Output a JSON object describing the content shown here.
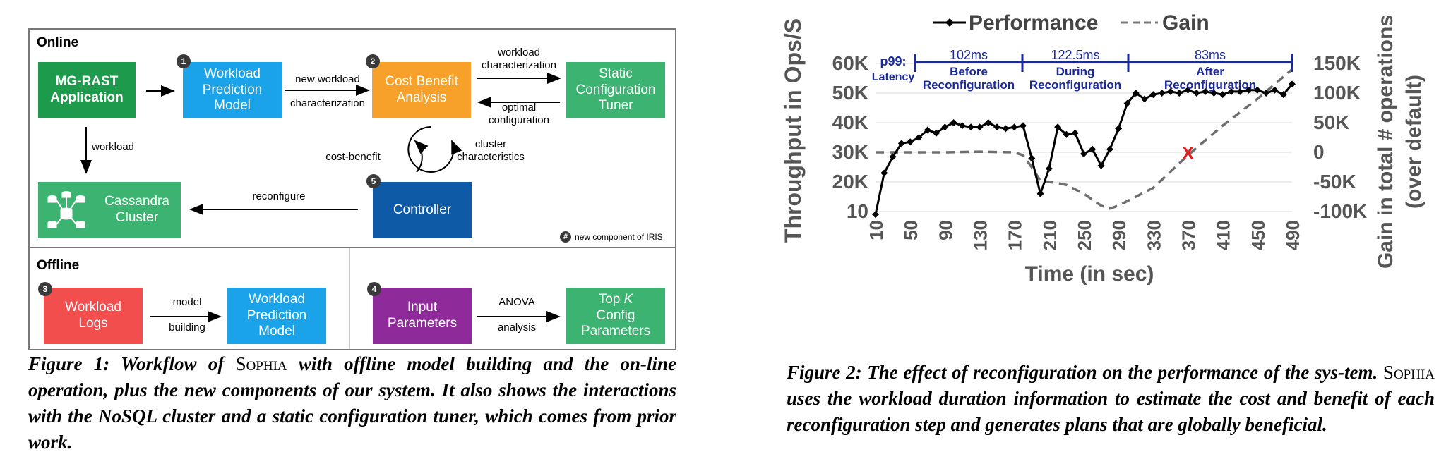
{
  "figure1": {
    "online_label": "Online",
    "offline_label": "Offline",
    "boxes": {
      "mgrast": "MG-RAST\nApplication",
      "workload_prediction": "Workload\nPrediction\nModel",
      "cost_benefit": "Cost Benefit\nAnalysis",
      "static_tuner": "Static\nConfiguration\nTuner",
      "cassandra": "Cassandra\nCluster",
      "controller": "Controller",
      "workload_logs": "Workload\nLogs",
      "workload_prediction_offline": "Workload\nPrediction\nModel",
      "input_params": "Input\nParameters",
      "topk_prefix": "Top ",
      "topk_k": "K",
      "topk_rest": "Config\nParameters"
    },
    "numbers": {
      "n1": "1",
      "n2": "2",
      "n3": "3",
      "n4": "4",
      "n5": "5",
      "legend_num": "#"
    },
    "labels": {
      "new_workload": "new workload",
      "characterization": "characterization",
      "workload_char": "workload\ncharacterization",
      "optimal_config": "optimal\nconfiguration",
      "workload": "workload",
      "cost_benefit": "cost-benefit",
      "cluster_char": "cluster\ncharacteristics",
      "reconfigure": "reconfigure",
      "legend": "new component of IRIS",
      "model": "model",
      "building": "building",
      "anova": "ANOVA",
      "analysis": "analysis"
    },
    "caption_a": "Figure 1: Workflow of ",
    "caption_sophia": "Sophia",
    "caption_b": " with offline model building and the on-line operation, plus the new components of our system. It also shows the interactions with the NoSQL cluster and a static configuration tuner, which comes from prior work.",
    "colors": {
      "green_dark": "#1e9a4c",
      "green": "#3cb371",
      "blue": "#1aa3e8",
      "orange": "#f7a12a",
      "navy": "#0e5aa7",
      "red": "#f24e4e",
      "purple": "#8e2a9a"
    }
  },
  "figure2": {
    "caption_a": "Figure 2: The effect of reconfiguration on the performance of the sys-tem. ",
    "caption_sophia": "Sophia",
    "caption_b": " uses the workload duration information to estimate the cost and benefit of each reconfiguration step and generates plans that are globally beneficial.",
    "annotations": {
      "p99": "p99:",
      "latency": "Latency",
      "before_ms": "102ms",
      "before": "Before",
      "reconf1": "Reconfiguration",
      "during_ms": "122.5ms",
      "during": "During",
      "reconf2": "Reconfiguration",
      "after_ms": "83ms",
      "after": "After",
      "reconf3": "Reconfiguration",
      "x_mark": "X"
    }
  },
  "chart_data": {
    "type": "line",
    "title": "",
    "xlabel": "Time (in sec)",
    "ylabel": "Throughput in Ops/S",
    "y2label": "Gain in total # operations (over default)",
    "x_ticks": [
      10,
      50,
      90,
      130,
      170,
      210,
      250,
      290,
      330,
      370,
      410,
      450,
      490
    ],
    "y_ticks": [
      "10",
      "20K",
      "30K",
      "40K",
      "50K",
      "60K"
    ],
    "y_tick_values": [
      10000,
      20000,
      30000,
      40000,
      50000,
      60000
    ],
    "y2_ticks": [
      "-100K",
      "-50K",
      "0",
      "50K",
      "100K",
      "150K"
    ],
    "y2_tick_values": [
      -100000,
      -50000,
      0,
      50000,
      100000,
      150000
    ],
    "xlim": [
      10,
      490
    ],
    "ylim": [
      10000,
      60000
    ],
    "y2lim": [
      -100000,
      150000
    ],
    "legend_position": "top",
    "series": [
      {
        "name": "Performance",
        "axis": "left",
        "style": "solid-markers",
        "color": "#000000",
        "x": [
          10,
          20,
          30,
          40,
          50,
          60,
          70,
          80,
          90,
          100,
          110,
          120,
          130,
          140,
          150,
          160,
          170,
          180,
          190,
          200,
          210,
          220,
          230,
          240,
          250,
          260,
          270,
          280,
          290,
          300,
          310,
          320,
          330,
          340,
          350,
          360,
          370,
          380,
          390,
          400,
          410,
          420,
          430,
          440,
          450,
          460,
          470,
          480,
          490
        ],
        "y": [
          9000,
          23000,
          28500,
          33000,
          33500,
          35000,
          37500,
          36500,
          38500,
          40000,
          39000,
          38500,
          38500,
          40000,
          38500,
          38000,
          38500,
          39000,
          28000,
          16000,
          24500,
          38500,
          36000,
          36500,
          29500,
          31000,
          25500,
          31000,
          38000,
          46500,
          50000,
          48000,
          49500,
          50000,
          50500,
          50000,
          51000,
          50000,
          50500,
          50000,
          49500,
          50500,
          50500,
          51000,
          51000,
          50000,
          51000,
          49500,
          53000
        ]
      },
      {
        "name": "Gain",
        "axis": "right",
        "style": "dashed",
        "color": "#6e6e6e",
        "x": [
          10,
          50,
          90,
          130,
          170,
          180,
          190,
          200,
          210,
          220,
          230,
          250,
          270,
          280,
          290,
          330,
          370,
          410,
          450,
          490
        ],
        "y": [
          0,
          0,
          0,
          1000,
          0,
          -5000,
          -25000,
          -48000,
          -50000,
          -52000,
          -55000,
          -70000,
          -90000,
          -95000,
          -90000,
          -60000,
          -5000,
          45000,
          90000,
          140000
        ]
      }
    ]
  }
}
